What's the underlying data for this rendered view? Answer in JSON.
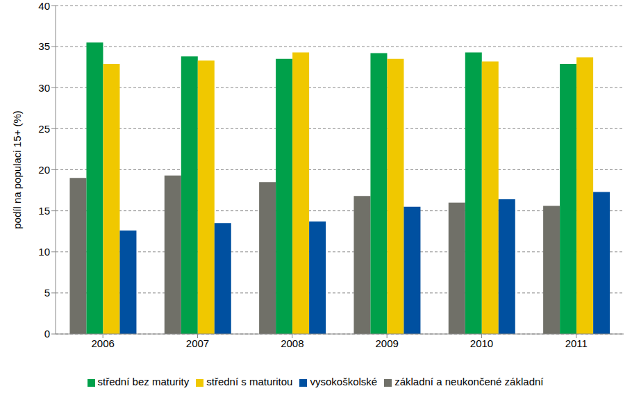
{
  "chart_data": {
    "type": "bar",
    "y_label": "podíl na populaci 15+ (%)",
    "categories": [
      "2006",
      "2007",
      "2008",
      "2009",
      "2010",
      "2011"
    ],
    "series": [
      {
        "name": "základní a neukončené základní",
        "color": "#707068",
        "values": [
          19.0,
          19.3,
          18.5,
          16.8,
          16.0,
          15.6
        ]
      },
      {
        "name": "střední bez maturity",
        "color": "#00a04a",
        "values": [
          35.5,
          33.8,
          33.5,
          34.2,
          34.3,
          32.9
        ]
      },
      {
        "name": "střední s maturitou",
        "color": "#f0c800",
        "values": [
          32.9,
          33.3,
          34.3,
          33.5,
          33.2,
          33.7
        ]
      },
      {
        "name": "vysokoškolské",
        "color": "#0050a0",
        "values": [
          12.6,
          13.5,
          13.7,
          15.5,
          16.4,
          17.3
        ]
      }
    ],
    "ylim": [
      0,
      40
    ],
    "yticks": [
      0,
      5,
      10,
      15,
      20,
      25,
      30,
      35,
      40
    ],
    "grid": true,
    "legend": "bottom"
  }
}
